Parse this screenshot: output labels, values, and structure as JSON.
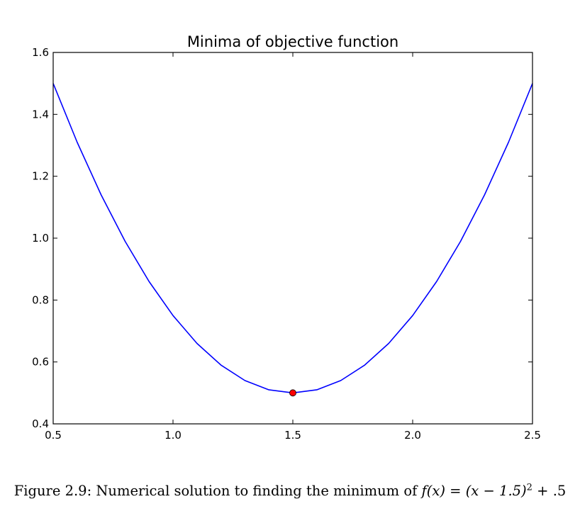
{
  "chart_data": {
    "type": "line",
    "title": "Minima of objective function",
    "xlabel": "",
    "ylabel": "",
    "xlim": [
      0.5,
      2.5
    ],
    "ylim": [
      0.4,
      1.6
    ],
    "xticks": [
      0.5,
      1.0,
      1.5,
      2.0,
      2.5
    ],
    "xtick_labels": [
      "0.5",
      "1.0",
      "1.5",
      "2.0",
      "2.5"
    ],
    "yticks": [
      0.4,
      0.6,
      0.8,
      1.0,
      1.2,
      1.4,
      1.6
    ],
    "ytick_labels": [
      "0.4",
      "0.6",
      "0.8",
      "1.0",
      "1.2",
      "1.4",
      "1.6"
    ],
    "grid": false,
    "series": [
      {
        "color": "#0000ff",
        "x": [
          0.5,
          0.6,
          0.7,
          0.8,
          0.9,
          1.0,
          1.1,
          1.2,
          1.3,
          1.4,
          1.5,
          1.6,
          1.7,
          1.8,
          1.9,
          2.0,
          2.1,
          2.2,
          2.3,
          2.4,
          2.5
        ],
        "y": [
          1.5,
          1.31,
          1.14,
          0.99,
          0.86,
          0.75,
          0.66,
          0.59,
          0.54,
          0.51,
          0.5,
          0.51,
          0.54,
          0.59,
          0.66,
          0.75,
          0.86,
          0.99,
          1.14,
          1.31,
          1.5
        ]
      }
    ],
    "points": [
      {
        "x": 1.5,
        "y": 0.5,
        "color": "#ff0000"
      }
    ]
  },
  "caption": {
    "lead": "Figure 2.9: Numerical solution to finding the minimum of ",
    "fx": "f(x)",
    "eq": " = ",
    "base": "(x − 1.5)",
    "exponent": "2",
    "tail": " + .5"
  }
}
